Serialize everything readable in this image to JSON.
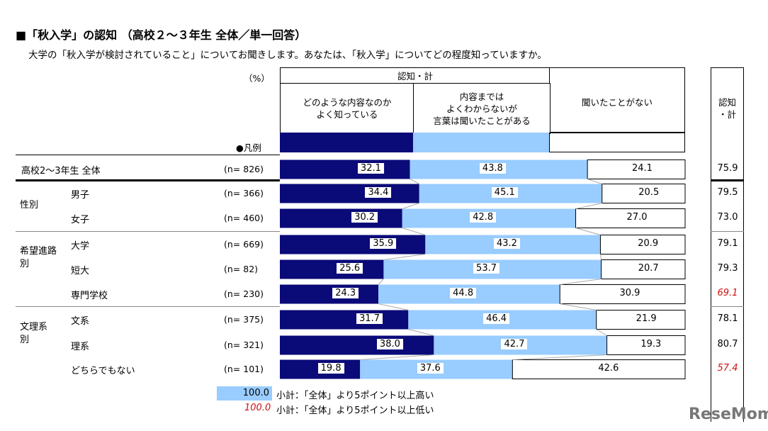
{
  "title": "■「秋入学」の認知 （高校２～３年生 全体／単一回答）",
  "question": "大学の「秋入学が検討されていること」についてお聞きします。あなたは、「秋入学」についてどの程度知っていますか。",
  "unit": "（%）",
  "legend_label": "●凡例",
  "header": {
    "group": "認知・計",
    "total": "認知\n・計"
  },
  "colors": {
    "well_known": "#0a0a78",
    "heard_only": "#99ccff",
    "never": "#ffffff",
    "low_highlight": "#d01010"
  },
  "chart_data": {
    "type": "bar",
    "stacked": true,
    "orientation": "horizontal",
    "xlim": [
      0,
      100
    ],
    "series": [
      {
        "name": "どのような内容なのか\nよく知っている",
        "values": [
          32.1,
          34.4,
          30.2,
          35.9,
          25.6,
          24.3,
          31.7,
          38.0,
          19.8
        ]
      },
      {
        "name": "内容までは\nよくわからないが\n言葉は聞いたことがある",
        "values": [
          43.8,
          45.1,
          42.8,
          43.2,
          53.7,
          44.8,
          46.4,
          42.7,
          37.6
        ]
      },
      {
        "name": "聞いたことがない",
        "values": [
          24.1,
          20.5,
          27.0,
          20.9,
          20.7,
          30.9,
          21.9,
          19.3,
          42.6
        ]
      }
    ],
    "categories": [
      {
        "group": "",
        "label": "高校2～3年生 全体",
        "n": "(n=  826)",
        "total": "75.9",
        "flag": ""
      },
      {
        "group": "性別",
        "label": "男子",
        "n": "(n=  366)",
        "total": "79.5",
        "flag": ""
      },
      {
        "group": "",
        "label": "女子",
        "n": "(n=  460)",
        "total": "73.0",
        "flag": ""
      },
      {
        "group": "希望進路\n別",
        "label": "大学",
        "n": "(n=  669)",
        "total": "79.1",
        "flag": ""
      },
      {
        "group": "",
        "label": "短大",
        "n": "(n=    82)",
        "total": "79.3",
        "flag": ""
      },
      {
        "group": "",
        "label": "専門学校",
        "n": "(n=  230)",
        "total": "69.1",
        "flag": "low"
      },
      {
        "group": "文理系\n別",
        "label": "文系",
        "n": "(n=  375)",
        "total": "78.1",
        "flag": ""
      },
      {
        "group": "",
        "label": "理系",
        "n": "(n=  321)",
        "total": "80.7",
        "flag": ""
      },
      {
        "group": "",
        "label": "どちらでもない",
        "n": "(n=  101)",
        "total": "57.4",
        "flag": "low"
      }
    ]
  },
  "notes": [
    {
      "sample": "100.0",
      "text": "小計：「全体」より5ポイント以上高い"
    },
    {
      "sample": "100.0",
      "text": "小計：「全体」より5ポイント以上低い"
    }
  ],
  "watermark": "ReseMom"
}
